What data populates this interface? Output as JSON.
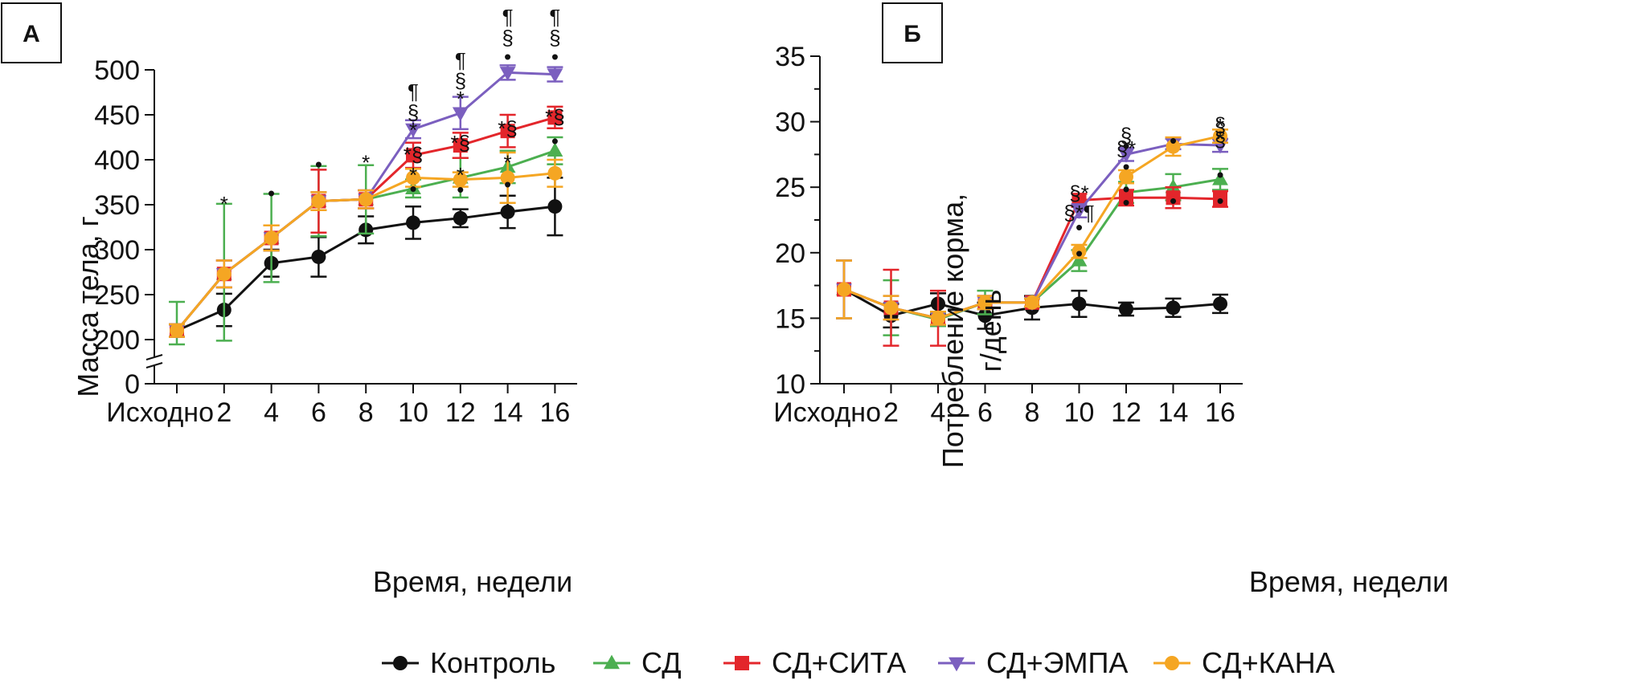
{
  "colors": {
    "Контроль": "#111111",
    "СД": "#4caf50",
    "СД+СИТА": "#e3262b",
    "СД+ЭМПА": "#7b5fbf",
    "СД+КАНА": "#f5a623"
  },
  "legend": [
    {
      "name": "Контроль",
      "marker": "circle"
    },
    {
      "name": "СД",
      "marker": "triangle-up"
    },
    {
      "name": "СД+СИТА",
      "marker": "square"
    },
    {
      "name": "СД+ЭМПА",
      "marker": "triangle-down"
    },
    {
      "name": "СД+КАНА",
      "marker": "circle"
    }
  ],
  "chart_data": [
    {
      "panel": "А",
      "type": "line",
      "xlabel": "Время, недели",
      "ylabel": "Масса тела, г",
      "x_ticks": [
        "Исходно",
        "2",
        "4",
        "6",
        "8",
        "10",
        "12",
        "14",
        "16"
      ],
      "y_ticks": [
        0,
        200,
        250,
        300,
        350,
        400,
        450,
        500
      ],
      "ylim": [
        0,
        500
      ],
      "axis_break": true,
      "series": [
        {
          "name": "Контроль",
          "values": [
            210,
            233,
            285,
            292,
            322,
            330,
            335,
            342,
            348
          ],
          "errors": [
            7,
            18,
            15,
            22,
            15,
            18,
            10,
            18,
            32
          ]
        },
        {
          "name": "СД",
          "values": [
            210,
            273,
            313,
            354,
            356,
            368,
            380,
            392,
            410
          ],
          "errors": [
            32,
            78,
            49,
            39,
            38,
            10,
            22,
            18,
            15
          ]
        },
        {
          "name": "СД+СИТА",
          "values": [
            210,
            273,
            313,
            354,
            356,
            405,
            416,
            432,
            447
          ],
          "errors": [
            7,
            15,
            14,
            35,
            10,
            14,
            14,
            18,
            12
          ]
        },
        {
          "name": "СД+ЭМПА",
          "values": [
            210,
            273,
            313,
            354,
            356,
            434,
            452,
            497,
            495
          ],
          "errors": [
            7,
            15,
            14,
            10,
            10,
            10,
            18,
            8,
            8
          ]
        },
        {
          "name": "СД+КАНА",
          "values": [
            210,
            273,
            313,
            354,
            356,
            380,
            378,
            380,
            385
          ],
          "errors": [
            7,
            15,
            14,
            10,
            10,
            10,
            8,
            28,
            15
          ]
        }
      ],
      "annotations": [
        {
          "x": "2",
          "y": 350,
          "text": "*"
        },
        {
          "x": "4",
          "y": 362,
          "text": "•"
        },
        {
          "x": "6",
          "y": 394,
          "text": "•"
        },
        {
          "x": "8",
          "y": 396,
          "text": "*"
        },
        {
          "x": "10",
          "y": 475,
          "text": "¶"
        },
        {
          "x": "10",
          "y": 452,
          "text": "§"
        },
        {
          "x": "10",
          "y": 432,
          "text": "*"
        },
        {
          "x": "10",
          "y": 405,
          "text": "*§"
        },
        {
          "x": "10",
          "y": 382,
          "text": "*"
        },
        {
          "x": "10",
          "y": 367,
          "text": "•"
        },
        {
          "x": "12",
          "y": 510,
          "text": "¶"
        },
        {
          "x": "12",
          "y": 487,
          "text": "§"
        },
        {
          "x": "12",
          "y": 467,
          "text": "*"
        },
        {
          "x": "12",
          "y": 418,
          "text": "*§"
        },
        {
          "x": "12",
          "y": 382,
          "text": "*"
        },
        {
          "x": "12",
          "y": 366,
          "text": "•"
        },
        {
          "x": "14",
          "y": 558,
          "text": "¶"
        },
        {
          "x": "14",
          "y": 535,
          "text": "§"
        },
        {
          "x": "14",
          "y": 514,
          "text": "•"
        },
        {
          "x": "14",
          "y": 434,
          "text": "*§"
        },
        {
          "x": "14",
          "y": 396,
          "text": "*"
        },
        {
          "x": "14",
          "y": 372,
          "text": "•"
        },
        {
          "x": "16",
          "y": 558,
          "text": "¶"
        },
        {
          "x": "16",
          "y": 535,
          "text": "§"
        },
        {
          "x": "16",
          "y": 514,
          "text": "•"
        },
        {
          "x": "16",
          "y": 447,
          "text": "*§"
        },
        {
          "x": "16",
          "y": 420,
          "text": "•"
        }
      ]
    },
    {
      "panel": "Б",
      "type": "line",
      "xlabel": "Время, недели",
      "ylabel": "Потребление корма, г/день",
      "ylabel_lines": [
        "Потребление корма,",
        "г/день"
      ],
      "x_ticks": [
        "Исходно",
        "2",
        "4",
        "6",
        "8",
        "10",
        "12",
        "14",
        "16"
      ],
      "y_ticks": [
        10,
        15,
        20,
        25,
        30,
        35
      ],
      "ylim": [
        10,
        35
      ],
      "series": [
        {
          "name": "Контроль",
          "values": [
            17.2,
            15.2,
            16.1,
            15.2,
            15.8,
            16.1,
            15.7,
            15.8,
            16.1
          ],
          "errors": [
            2.2,
            0.9,
            0.8,
            1.0,
            0.9,
            1.0,
            0.5,
            0.7,
            0.7
          ]
        },
        {
          "name": "СД",
          "values": [
            17.2,
            15.8,
            14.9,
            16.2,
            16.2,
            19.4,
            24.6,
            25.0,
            25.6
          ],
          "errors": [
            2.2,
            2.1,
            0.5,
            0.9,
            0.3,
            0.8,
            0.8,
            1.0,
            0.8
          ]
        },
        {
          "name": "СД+СИТА",
          "values": [
            17.2,
            15.8,
            15.0,
            16.2,
            16.2,
            24.0,
            24.2,
            24.2,
            24.1
          ],
          "errors": [
            2.2,
            2.9,
            2.1,
            0.5,
            0.3,
            0.5,
            0.6,
            0.8,
            0.6
          ]
        },
        {
          "name": "СД+ЭМПА",
          "values": [
            17.2,
            15.8,
            15.0,
            16.2,
            16.2,
            23.2,
            27.5,
            28.3,
            28.2
          ],
          "errors": [
            2.2,
            0.9,
            0.5,
            0.5,
            0.3,
            0.5,
            0.5,
            0.4,
            0.5
          ]
        },
        {
          "name": "СД+КАНА",
          "values": [
            17.2,
            15.8,
            15.0,
            16.2,
            16.2,
            20.1,
            25.8,
            28.1,
            28.9
          ],
          "errors": [
            2.2,
            0.9,
            0.5,
            0.5,
            0.3,
            0.5,
            0.5,
            0.7,
            0.5
          ]
        }
      ],
      "annotations": [
        {
          "x": "10",
          "y": 24.5,
          "text": "§*"
        },
        {
          "x": "10",
          "y": 23.0,
          "text": "§*¶"
        },
        {
          "x": "10",
          "y": 21.9,
          "text": "•"
        },
        {
          "x": "10",
          "y": 19.9,
          "text": "•"
        },
        {
          "x": "12",
          "y": 28.1,
          "text": "•"
        },
        {
          "x": "12",
          "y": 26.5,
          "text": "•"
        },
        {
          "x": "12",
          "y": 24.8,
          "text": "•"
        },
        {
          "x": "12",
          "y": 23.8,
          "text": "•"
        },
        {
          "x": "12",
          "y": 28.9,
          "text": "§"
        },
        {
          "x": "12",
          "y": 27.9,
          "text": "§*"
        },
        {
          "x": "14",
          "y": 28.5,
          "text": "•"
        },
        {
          "x": "14",
          "y": 23.9,
          "text": "•"
        },
        {
          "x": "16",
          "y": 29.6,
          "text": "*"
        },
        {
          "x": "16",
          "y": 28.6,
          "text": "*"
        },
        {
          "x": "16",
          "y": 25.9,
          "text": "•"
        },
        {
          "x": "16",
          "y": 23.9,
          "text": "•"
        },
        {
          "x": "16",
          "y": 29.7,
          "text": "§"
        },
        {
          "x": "16",
          "y": 28.6,
          "text": "§"
        }
      ]
    }
  ]
}
